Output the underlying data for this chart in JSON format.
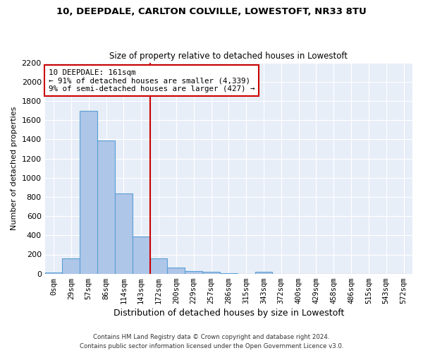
{
  "title1": "10, DEEPDALE, CARLTON COLVILLE, LOWESTOFT, NR33 8TU",
  "title2": "Size of property relative to detached houses in Lowestoft",
  "xlabel": "Distribution of detached houses by size in Lowestoft",
  "ylabel": "Number of detached properties",
  "bar_labels": [
    "0sqm",
    "29sqm",
    "57sqm",
    "86sqm",
    "114sqm",
    "143sqm",
    "172sqm",
    "200sqm",
    "229sqm",
    "257sqm",
    "286sqm",
    "315sqm",
    "343sqm",
    "372sqm",
    "400sqm",
    "429sqm",
    "458sqm",
    "486sqm",
    "515sqm",
    "543sqm",
    "572sqm"
  ],
  "bar_values": [
    10,
    157,
    1700,
    1390,
    835,
    385,
    160,
    65,
    25,
    18,
    5,
    0,
    22,
    0,
    0,
    0,
    0,
    0,
    0,
    0,
    0
  ],
  "bar_color": "#aec6e8",
  "bar_edge_color": "#5a9fd4",
  "annotation_title": "10 DEEPDALE: 161sqm",
  "annotation_line1": "← 91% of detached houses are smaller (4,339)",
  "annotation_line2": "9% of semi-detached houses are larger (427) →",
  "vline_color": "#cc0000",
  "annotation_box_color": "#ffffff",
  "annotation_box_edge": "#cc0000",
  "ylim": [
    0,
    2200
  ],
  "yticks": [
    0,
    200,
    400,
    600,
    800,
    1000,
    1200,
    1400,
    1600,
    1800,
    2000,
    2200
  ],
  "background_color": "#e8eef8",
  "footer1": "Contains HM Land Registry data © Crown copyright and database right 2024.",
  "footer2": "Contains public sector information licensed under the Open Government Licence v3.0."
}
